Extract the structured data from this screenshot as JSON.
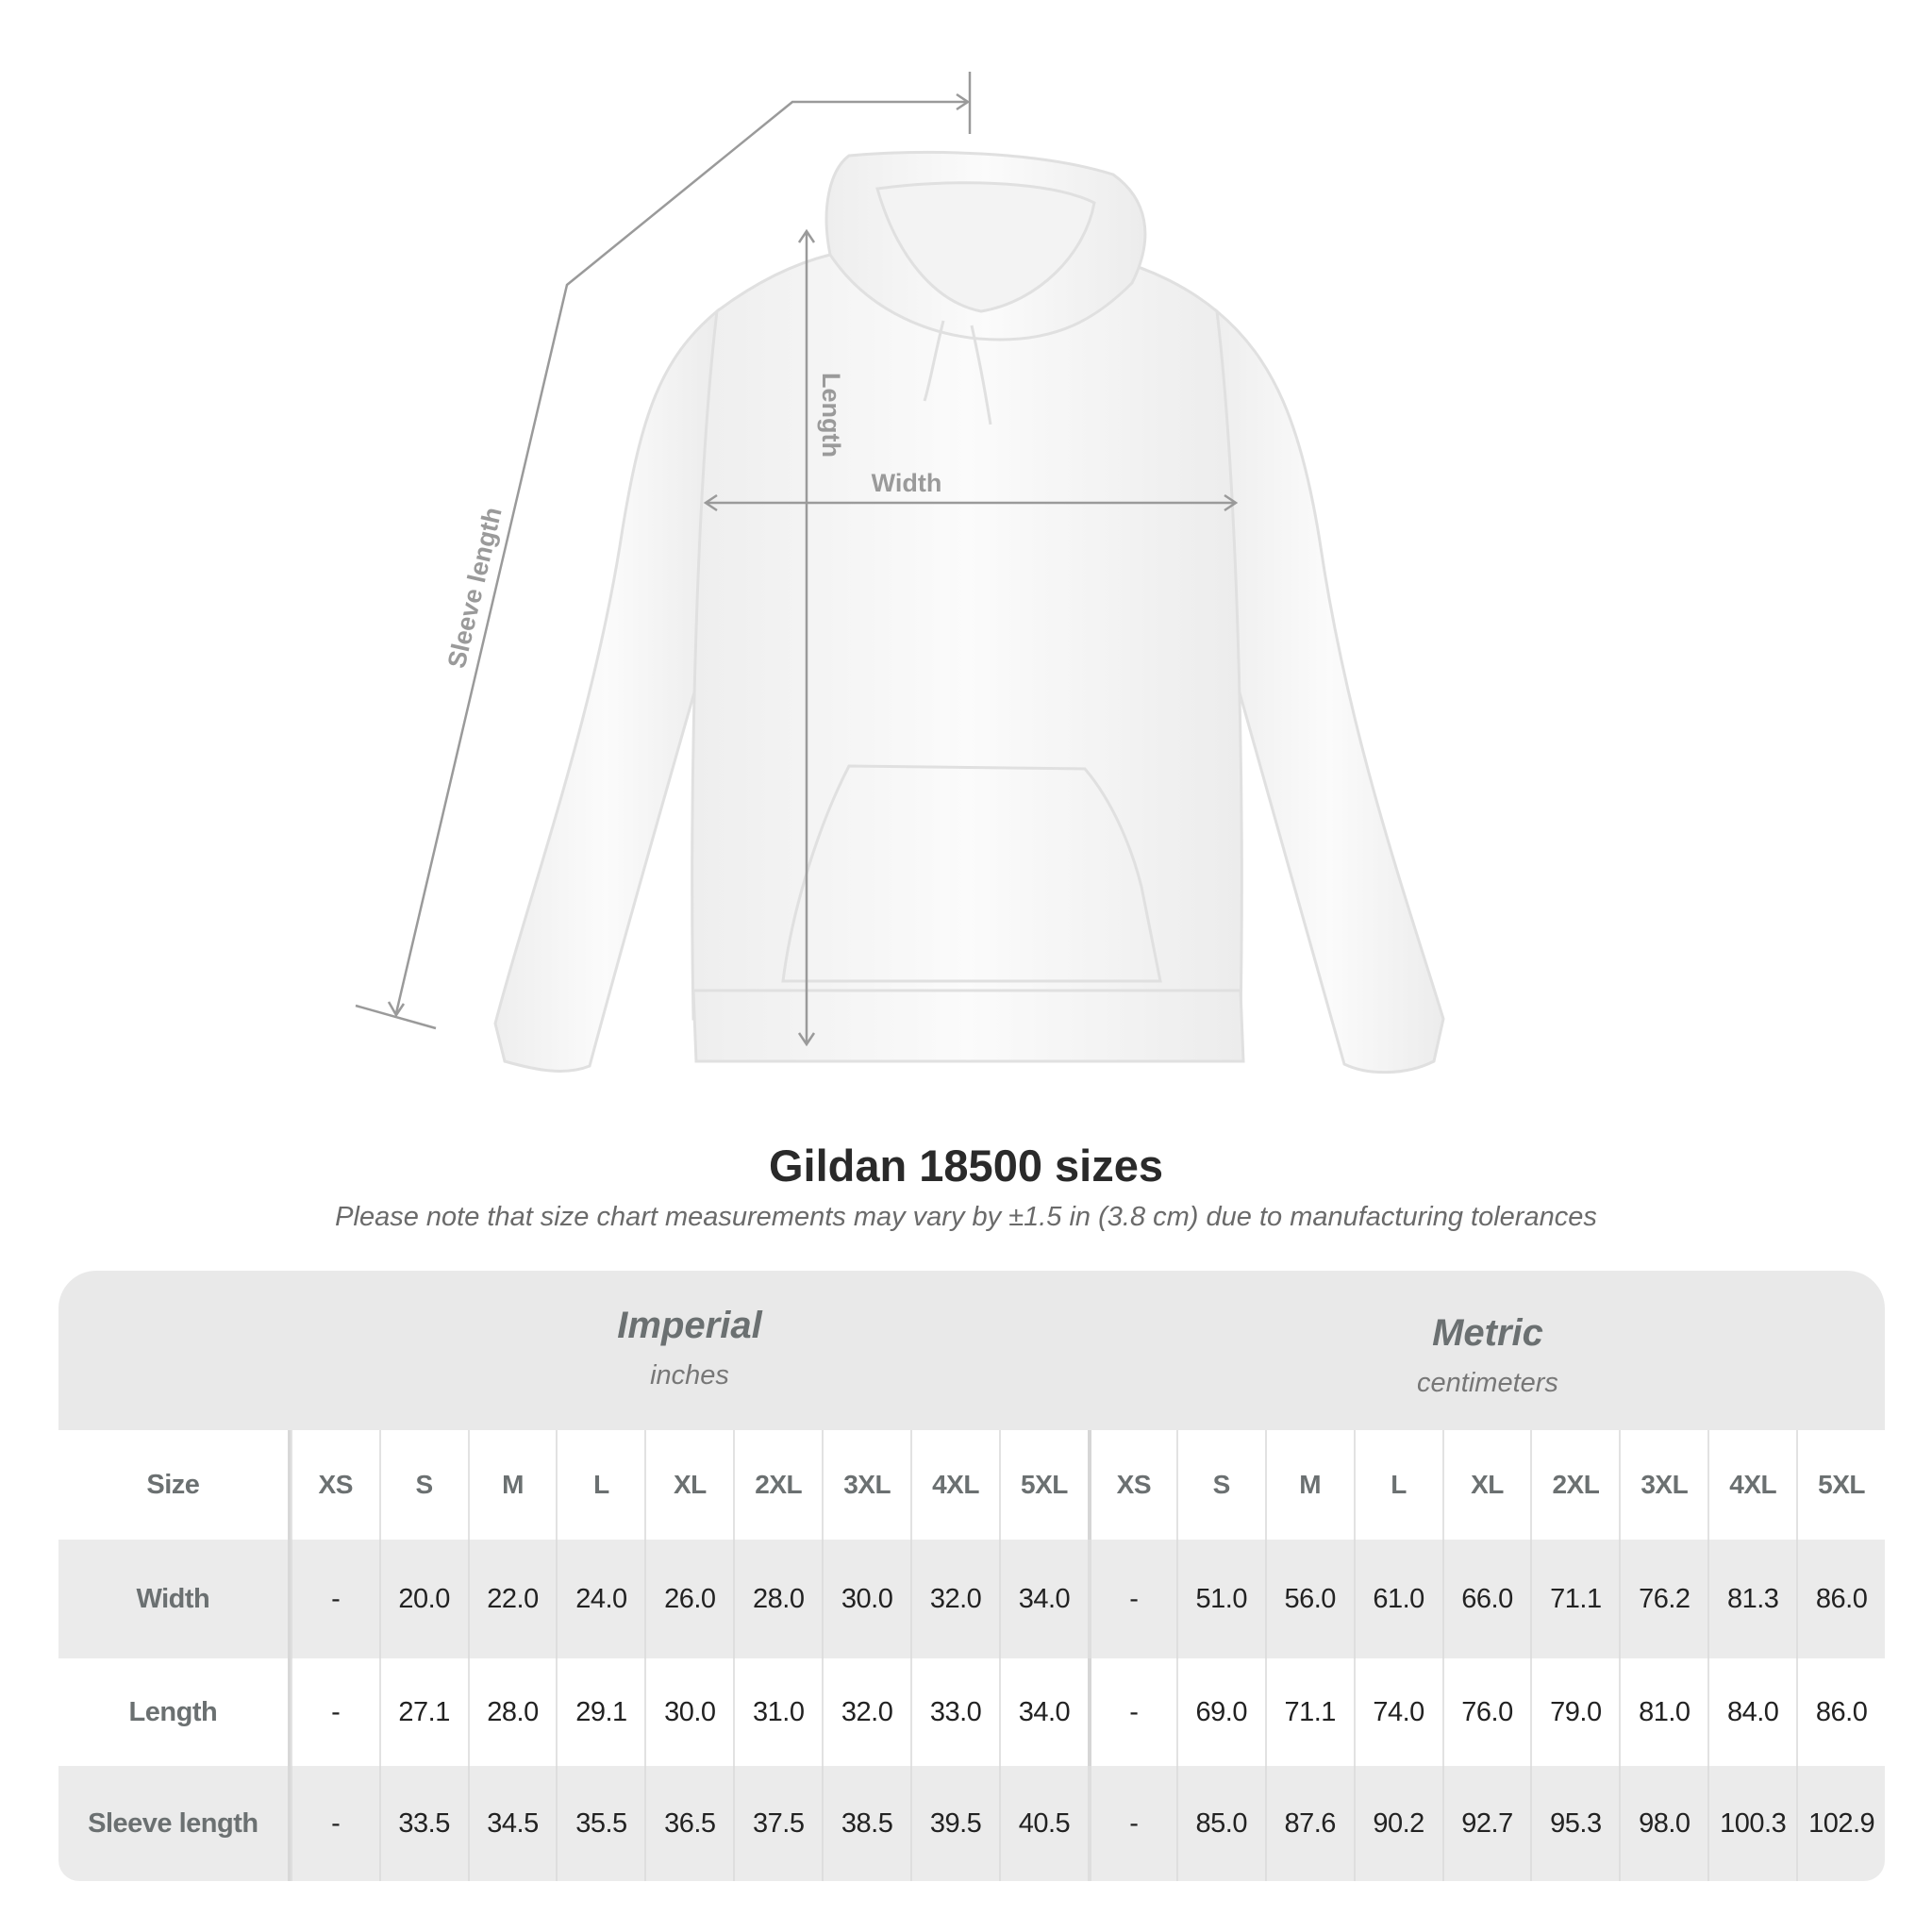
{
  "diagram": {
    "labels": {
      "sleeve": "Sleeve length",
      "length": "Length",
      "width": "Width"
    },
    "line_color": "#9a9a9a"
  },
  "header": {
    "title": "Gildan 18500 sizes",
    "note": "Please note that size chart measurements may vary by ±1.5 in (3.8 cm) due to manufacturing tolerances"
  },
  "table": {
    "imperial": {
      "label": "Imperial",
      "unit": "inches"
    },
    "metric": {
      "label": "Metric",
      "unit": "centimeters"
    },
    "size_label": "Size",
    "sizes": [
      "XS",
      "S",
      "M",
      "L",
      "XL",
      "2XL",
      "3XL",
      "4XL",
      "5XL"
    ],
    "rows": [
      {
        "label": "Width",
        "imperial": [
          "-",
          "20.0",
          "22.0",
          "24.0",
          "26.0",
          "28.0",
          "30.0",
          "32.0",
          "34.0"
        ],
        "metric": [
          "-",
          "51.0",
          "56.0",
          "61.0",
          "66.0",
          "71.1",
          "76.2",
          "81.3",
          "86.0"
        ]
      },
      {
        "label": "Length",
        "imperial": [
          "-",
          "27.1",
          "28.0",
          "29.1",
          "30.0",
          "31.0",
          "32.0",
          "33.0",
          "34.0"
        ],
        "metric": [
          "-",
          "69.0",
          "71.1",
          "74.0",
          "76.0",
          "79.0",
          "81.0",
          "84.0",
          "86.0"
        ]
      },
      {
        "label": "Sleeve length",
        "imperial": [
          "-",
          "33.5",
          "34.5",
          "35.5",
          "36.5",
          "37.5",
          "38.5",
          "39.5",
          "40.5"
        ],
        "metric": [
          "-",
          "85.0",
          "87.6",
          "90.2",
          "92.7",
          "95.3",
          "98.0",
          "100.3",
          "102.9"
        ]
      }
    ]
  }
}
